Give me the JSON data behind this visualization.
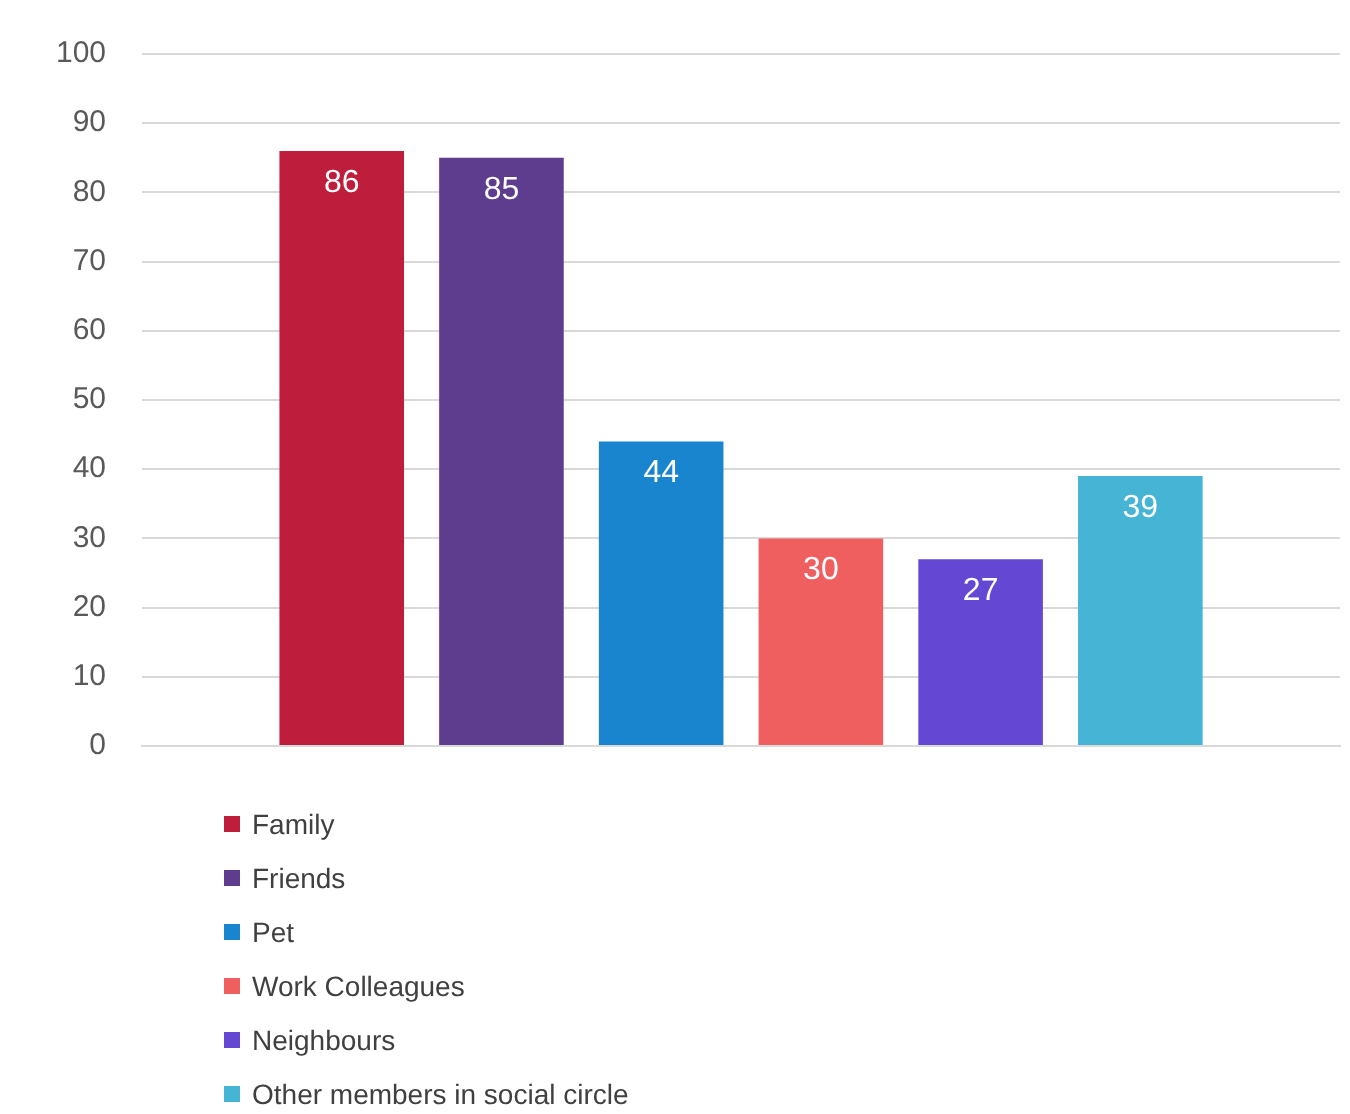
{
  "chart_data": {
    "type": "bar",
    "categories": [
      null
    ],
    "series": [
      {
        "name": "Family",
        "color": "#be1e3c",
        "values": [
          86
        ]
      },
      {
        "name": "Friends",
        "color": "#5e3c8e",
        "values": [
          85
        ]
      },
      {
        "name": "Pet",
        "color": "#1a85cf",
        "values": [
          44
        ]
      },
      {
        "name": "Work Colleagues",
        "color": "#ef5f5f",
        "values": [
          30
        ]
      },
      {
        "name": "Neighbours",
        "color": "#6448d4",
        "values": [
          27
        ]
      },
      {
        "name": "Other members in social circle",
        "color": "#46b4d4",
        "values": [
          39
        ]
      }
    ],
    "ylim": [
      0,
      100
    ],
    "yticks": [
      0,
      10,
      20,
      30,
      40,
      50,
      60,
      70,
      80,
      90,
      100
    ],
    "grid": "y",
    "legend": "bottom left",
    "data_labels": true
  }
}
